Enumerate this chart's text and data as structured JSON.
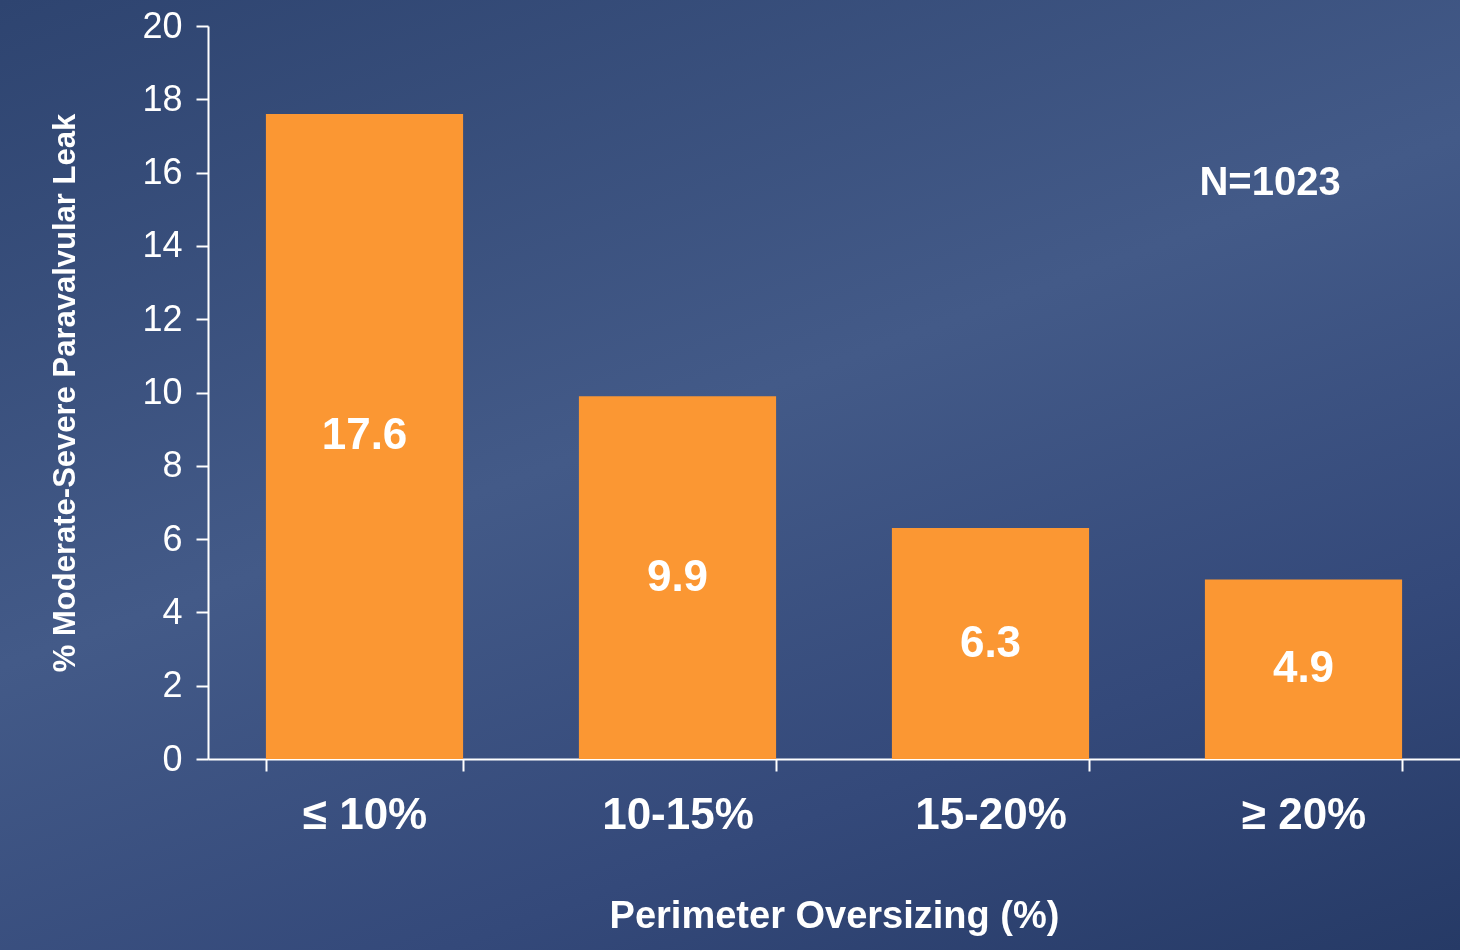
{
  "chart_data": {
    "type": "bar",
    "xlabel": "Perimeter Oversizing (%)",
    "ylabel": "% Moderate-Severe Paravalvular Leak",
    "categories": [
      "≤ 10%",
      "10-15%",
      "15-20%",
      "≥ 20%"
    ],
    "values": [
      17.6,
      9.9,
      6.3,
      4.9
    ],
    "color": "#fb9733",
    "ylim": [
      0,
      20
    ],
    "yticks": [
      0,
      2,
      4,
      6,
      8,
      10,
      12,
      14,
      16,
      18,
      20
    ],
    "grid": false,
    "data_labels": true,
    "annotations": [
      "N=1023"
    ]
  }
}
